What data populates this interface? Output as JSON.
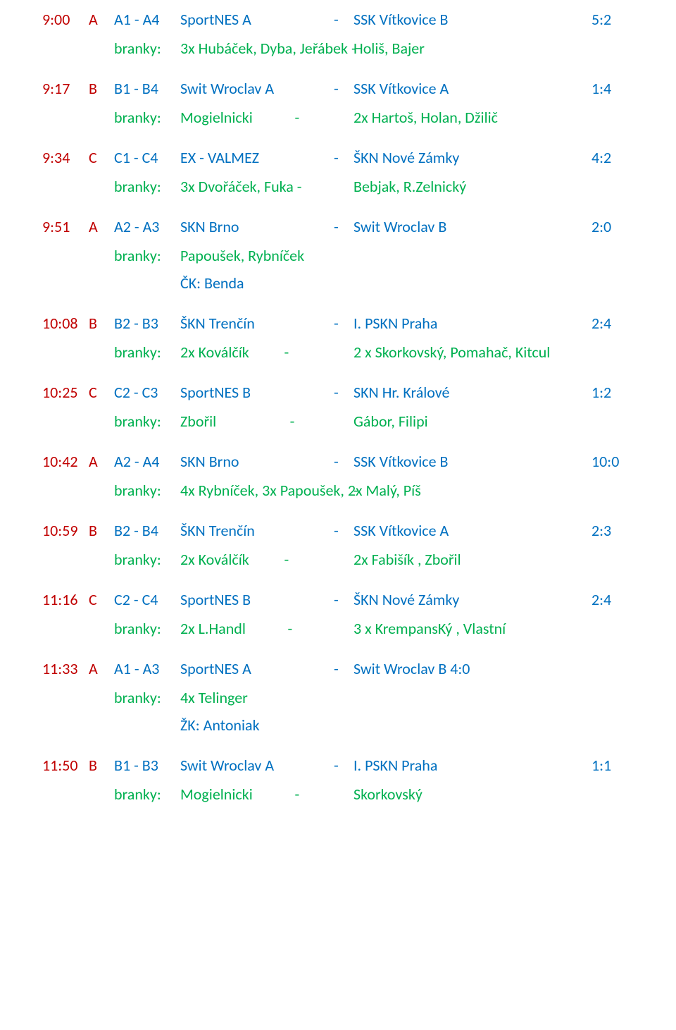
{
  "labels": {
    "branky": "branky:",
    "ck": "ČK: Benda",
    "zk": "ŽK: Antoniak"
  },
  "colors": {
    "time": "#c00000",
    "team": "#0070c0",
    "goal": "#00b050"
  },
  "matches": [
    {
      "time": "9:00",
      "group": "A",
      "bracket": "A1 - A4",
      "home": "SportNES A",
      "dash": "-",
      "away": "SSK Vítkovice B",
      "score": "5:2",
      "goals_left": "3x Hubáček, Dyba, Jeřábek -",
      "goals_right": "Holiš, Bajer",
      "card": ""
    },
    {
      "time": "9:17",
      "group": "B",
      "bracket": "B1 - B4",
      "home": "Swit Wroclav A",
      "dash": "-",
      "away": "SSK Vítkovice A",
      "score": "1:4",
      "goals_left": "Mogielnicki            -",
      "goals_right": "2x Hartoš, Holan, Džilič",
      "card": ""
    },
    {
      "time": "9:34",
      "group": "C",
      "bracket": "C1 - C4",
      "home": "EX - VALMEZ",
      "dash": "-",
      "away": "ŠKN Nové Zámky",
      "score": "4:2",
      "goals_left": "3x Dvořáček, Fuka -",
      "goals_right": "Bebjak, R.Zelnický",
      "card": ""
    },
    {
      "time": "9:51",
      "group": "A",
      "bracket": "A2 - A3",
      "home": "SKN Brno",
      "dash": "-",
      "away": "Swit Wroclav B",
      "score": "2:0",
      "goals_left": "Papoušek, Rybníček",
      "goals_right": "",
      "card": "ck"
    },
    {
      "time": "10:08",
      "group": "B",
      "bracket": "B2 - B3",
      "home": "ŠKN Trenčín",
      "dash": "-",
      "away": "I. PSKN Praha",
      "score": "2:4",
      "goals_left": "2x Koválčík          -",
      "goals_right": "2 x Skorkovský, Pomahač, Kitcul",
      "card": ""
    },
    {
      "time": "10:25",
      "group": "C",
      "bracket": "C2 - C3",
      "home": "SportNES B",
      "dash": "-",
      "away": "SKN Hr. Králové",
      "score": "1:2",
      "goals_left": "Zbořil                     -",
      "goals_right": "Gábor, Filipi",
      "card": ""
    },
    {
      "time": "10:42",
      "group": "A",
      "bracket": "A2 - A4",
      "home": "SKN Brno",
      "dash": "-",
      "away": "SSK Vítkovice B",
      "score": "10:0",
      "goals_left": "4x Rybníček, 3x Papoušek, 2x Malý, Píš",
      "goals_right": "-",
      "card": ""
    },
    {
      "time": "10:59",
      "group": "B",
      "bracket": "B2 - B4",
      "home": "ŠKN Trenčín",
      "dash": "-",
      "away": "SSK Vítkovice A",
      "score": "2:3",
      "goals_left": "2x Koválčík          -",
      "goals_right": "2x Fabišík , Zbořil",
      "card": ""
    },
    {
      "time": "11:16",
      "group": "C",
      "bracket": "C2 - C4",
      "home": "SportNES B",
      "dash": "-",
      "away": "ŠKN Nové Zámky",
      "score": "2:4",
      "goals_left": "2x L.Handl            -",
      "goals_right": "3 x KrempansKý , Vlastní",
      "card": ""
    },
    {
      "time": "11:33",
      "group": "A",
      "bracket": "A1 - A3",
      "home": "SportNES A",
      "dash": "-",
      "away": "Swit Wroclav B  4:0",
      "score": "",
      "goals_left": "4x Telinger",
      "goals_right": "",
      "card": "zk"
    },
    {
      "time": "11:50",
      "group": "B",
      "bracket": "B1 - B3",
      "home": "Swit Wroclav A",
      "dash": "-",
      "away": "I. PSKN Praha",
      "score": "1:1",
      "goals_left": "Mogielnicki            -",
      "goals_right": "Skorkovský",
      "card": ""
    }
  ]
}
